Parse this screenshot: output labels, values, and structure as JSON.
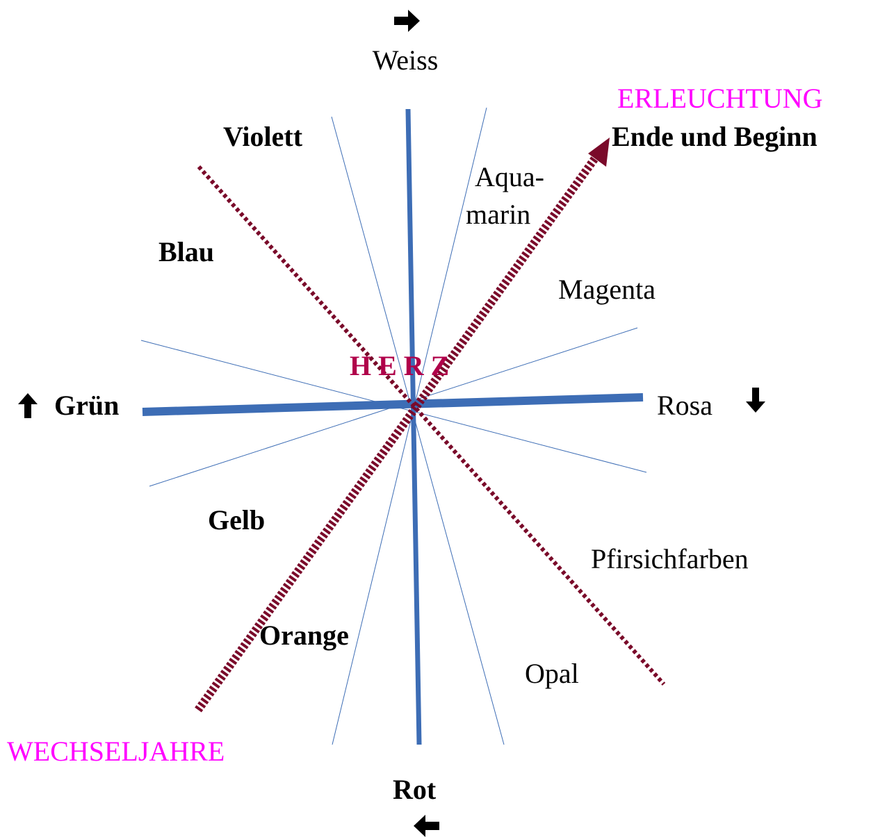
{
  "labels": {
    "top": "Weiss",
    "erleuchtung": "ERLEUCHTUNG",
    "ende": "Ende und Beginn",
    "violett": "Violett",
    "aquamarin": [
      "Aqua-",
      "marin"
    ],
    "blau": "Blau",
    "magenta": "Magenta",
    "herz": "H E R Z",
    "gruen": "Grün",
    "rosa": "Rosa",
    "gelb": "Gelb",
    "pfirsich": "Pfirsichfarben",
    "orange": "Orange",
    "opal": "Opal",
    "wechseljahre": "WECHSELJAHRE",
    "rot": "Rot"
  }
}
